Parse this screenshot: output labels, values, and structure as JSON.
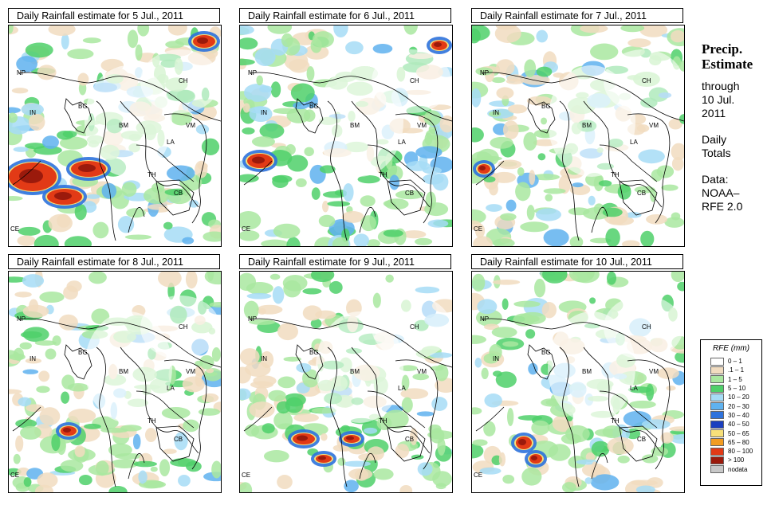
{
  "panels": [
    {
      "title": "Daily Rainfall estimate for  5 Jul., 2011",
      "labels": {
        "NP": "NP",
        "IN": "IN",
        "BG": "BG",
        "CH": "CH",
        "BM": "BM",
        "VM": "VM",
        "LA": "LA",
        "TH": "TH",
        "CB": "CB",
        "CE": "CE"
      }
    },
    {
      "title": "Daily Rainfall estimate for  6 Jul., 2011",
      "labels": {
        "NP": "NP",
        "IN": "IN",
        "BG": "BG",
        "CH": "CH",
        "BM": "BM",
        "VM": "VM",
        "LA": "LA",
        "TH": "TH",
        "CB": "CB",
        "CE": "CE"
      }
    },
    {
      "title": "Daily Rainfall estimate for  7 Jul., 2011",
      "labels": {
        "NP": "NP",
        "IN": "IN",
        "BG": "BG",
        "CH": "CH",
        "BM": "BM",
        "VM": "VM",
        "LA": "LA",
        "TH": "TH",
        "CB": "CB",
        "CE": "CE"
      }
    },
    {
      "title": "Daily Rainfall estimate for  8 Jul., 2011",
      "labels": {
        "NP": "NP",
        "IN": "IN",
        "BG": "BG",
        "CH": "CH",
        "BM": "BM",
        "VM": "VM",
        "LA": "LA",
        "TH": "TH",
        "CB": "CB",
        "CE": "CE"
      }
    },
    {
      "title": "Daily Rainfall estimate for  9 Jul., 2011",
      "labels": {
        "NP": "NP",
        "IN": "IN",
        "BG": "BG",
        "CH": "CH",
        "BM": "BM",
        "VM": "VM",
        "LA": "LA",
        "TH": "TH",
        "CB": "CB",
        "CE": "CE"
      }
    },
    {
      "title": "Daily Rainfall estimate for  10 Jul., 2011",
      "labels": {
        "NP": "NP",
        "IN": "IN",
        "BG": "BG",
        "CH": "CH",
        "BM": "BM",
        "VM": "VM",
        "LA": "LA",
        "TH": "TH",
        "CB": "CB",
        "CE": "CE"
      }
    }
  ],
  "side": {
    "heading1": "Precip.",
    "heading2": "Estimate",
    "through": "through",
    "date1": "10 Jul.",
    "date2": "2011",
    "totals1": "Daily",
    "totals2": "Totals",
    "data1": "Data:",
    "data2": "NOAA–",
    "data3": "RFE 2.0"
  },
  "legend": {
    "title": "RFE (mm)",
    "items": [
      {
        "label": "0 – 1",
        "color": "#ffffff"
      },
      {
        "label": ".1 – 1",
        "color": "#f1dcc0"
      },
      {
        "label": "1 – 5",
        "color": "#a9e8a0"
      },
      {
        "label": "5 – 10",
        "color": "#4fd06a"
      },
      {
        "label": "10 – 20",
        "color": "#a6dcf6"
      },
      {
        "label": "20 – 30",
        "color": "#5fb2ef"
      },
      {
        "label": "30 – 40",
        "color": "#2e72dc"
      },
      {
        "label": "40 – 50",
        "color": "#1a3fbf"
      },
      {
        "label": "50 – 65",
        "color": "#f7e07a"
      },
      {
        "label": "65 – 80",
        "color": "#f29c22"
      },
      {
        "label": "80 – 100",
        "color": "#e23a16"
      },
      {
        "label": "> 100",
        "color": "#9b1a0c"
      },
      {
        "label": "nodata",
        "color": "#c8c8c8"
      }
    ]
  }
}
